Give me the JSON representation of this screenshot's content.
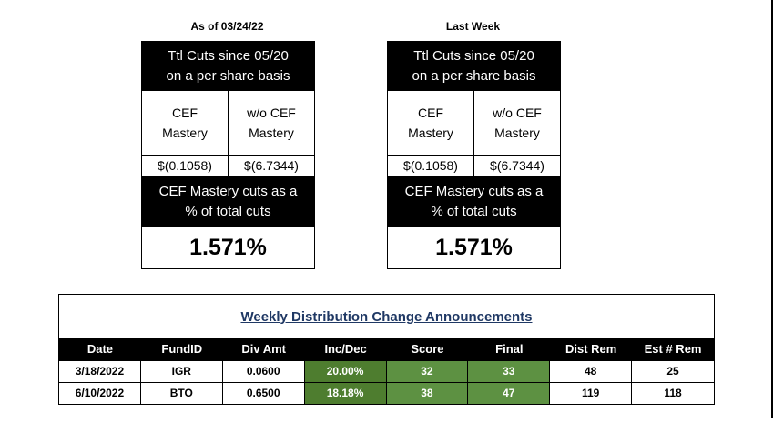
{
  "summary_tables": [
    {
      "caption": "As of 03/24/22",
      "header_line1": "Ttl Cuts since 05/20",
      "header_line2": "on a per share basis",
      "col1_line1": "CEF",
      "col1_line2": "Mastery",
      "col2_line1": "w/o CEF",
      "col2_line2": "Mastery",
      "value1": "$(0.1058)",
      "value2": "$(6.7344)",
      "sub_line1": "CEF Mastery cuts as a",
      "sub_line2": "% of total cuts",
      "percent": "1.571%"
    },
    {
      "caption": "Last Week",
      "header_line1": "Ttl Cuts since 05/20",
      "header_line2": "on a per share basis",
      "col1_line1": "CEF",
      "col1_line2": "Mastery",
      "col2_line1": "w/o CEF",
      "col2_line2": "Mastery",
      "value1": "$(0.1058)",
      "value2": "$(6.7344)",
      "sub_line1": "CEF Mastery cuts as a",
      "sub_line2": "% of total cuts",
      "percent": "1.571%"
    }
  ],
  "announcements": {
    "title": "Weekly Distribution Change Announcements",
    "columns": [
      "Date",
      "FundID",
      "Div Amt",
      "Inc/Dec",
      "Score",
      "Final",
      "Dist Rem",
      "Est # Rem"
    ],
    "rows": [
      {
        "date": "3/18/2022",
        "fund_id": "IGR",
        "div_amt": "0.0600",
        "inc_dec": "20.00%",
        "score": "32",
        "final": "33",
        "dist_rem": "48",
        "est_rem": "25"
      },
      {
        "date": "6/10/2022",
        "fund_id": "BTO",
        "div_amt": "0.6500",
        "inc_dec": "18.18%",
        "score": "38",
        "final": "47",
        "dist_rem": "119",
        "est_rem": "118"
      }
    ]
  },
  "colors": {
    "header_bg": "#000000",
    "green_dark": "#4e7d2f",
    "green_mid": "#5d9142",
    "title_navy": "#1f3864"
  }
}
